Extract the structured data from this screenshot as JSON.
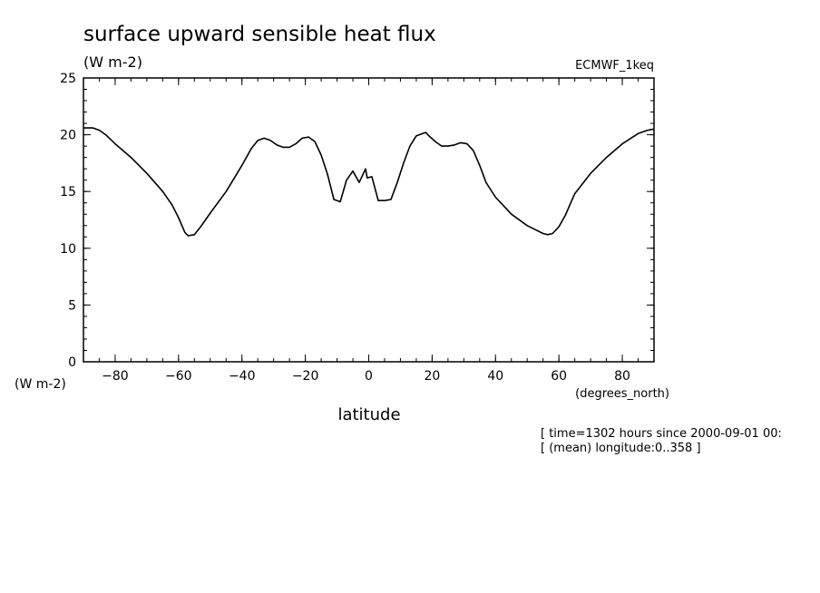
{
  "chart_data": {
    "type": "line",
    "title": "surface upward sensible heat flux",
    "units_label": "(W m-2)",
    "source_label": "ECMWF_1keq",
    "ylabel": "(W m-2)",
    "xlabel": "latitude",
    "x_units": "(degrees_north)",
    "notes": [
      "[ time=1302 hours since 2000-09-01 00:",
      "[ (mean) longitude:0..358 ]"
    ],
    "xlim": [
      -90,
      90
    ],
    "ylim": [
      0,
      25
    ],
    "x_ticks": [
      -80,
      -60,
      -40,
      -20,
      0,
      20,
      40,
      60,
      80
    ],
    "y_ticks": [
      0,
      5,
      10,
      15,
      20,
      25
    ],
    "grid": false,
    "series": [
      {
        "x": [
          -90,
          -87,
          -85,
          -83,
          -80,
          -75,
          -70,
          -65,
          -62,
          -60,
          -58,
          -57,
          -55,
          -53,
          -50,
          -45,
          -40,
          -37,
          -35,
          -33,
          -31,
          -29,
          -27,
          -25,
          -23,
          -21,
          -19,
          -17,
          -15,
          -13,
          -11,
          -9,
          -7,
          -5,
          -3,
          -1,
          1,
          3,
          -0.5,
          5,
          7,
          9,
          11,
          13,
          15,
          17,
          18,
          19,
          21,
          23,
          25,
          27,
          29,
          31,
          33,
          35,
          37,
          40,
          45,
          50,
          55,
          56.5,
          58,
          60,
          62,
          65,
          70,
          75,
          80,
          85,
          88,
          90
        ],
        "y": [
          20.6,
          20.6,
          20.4,
          20.0,
          19.2,
          18.0,
          16.6,
          15.0,
          13.8,
          12.7,
          11.4,
          11.1,
          11.2,
          11.9,
          13.1,
          15.0,
          17.3,
          18.8,
          19.5,
          19.7,
          19.5,
          19.1,
          18.9,
          18.9,
          19.2,
          19.7,
          19.8,
          19.4,
          18.2,
          16.5,
          14.3,
          14.1,
          16.0,
          16.8,
          15.8,
          17.0,
          16.3,
          14.2,
          16.2,
          14.2,
          14.3,
          15.8,
          17.5,
          19.0,
          19.9,
          20.1,
          20.2,
          19.9,
          19.4,
          19.0,
          19.0,
          19.1,
          19.3,
          19.2,
          18.6,
          17.3,
          15.8,
          14.5,
          13.0,
          12.0,
          11.3,
          11.2,
          11.3,
          11.9,
          12.9,
          14.8,
          16.6,
          18.0,
          19.2,
          20.1,
          20.4,
          20.5
        ]
      }
    ]
  }
}
